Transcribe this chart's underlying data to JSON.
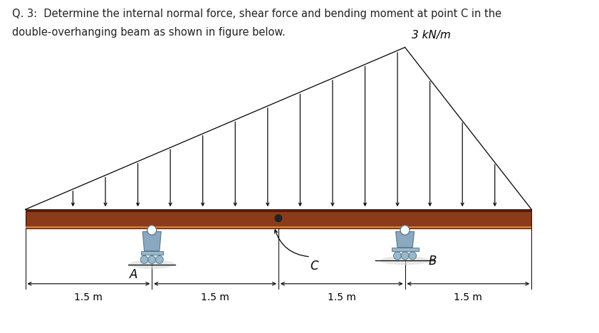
{
  "title_line1": "Q. 3:  Determine the internal normal force, shear force and bending moment at point C in the",
  "title_line2": "double-overhanging beam as shown in figure below.",
  "title_fontsize": 10.5,
  "title_color": "#222222",
  "load_label": "3 kN/m",
  "dim_labels": [
    "1.5 m",
    "1.5 m",
    "1.5 m",
    "1.5 m"
  ],
  "beam_color": "#8B3A1A",
  "beam_top_color": "#5C1A00",
  "beam_edge_color": "#3a1000",
  "beam_x_start": 0.0,
  "beam_x_end": 6.0,
  "beam_y_center": 0.0,
  "beam_height": 0.22,
  "support_A_x": 1.5,
  "support_B_x": 4.5,
  "point_C_x": 3.0,
  "load_peak_x": 4.5,
  "load_peak_height": 1.85,
  "n_load_arrows": 16,
  "support_pin_color": "#8aa8c0",
  "support_pin_dark": "#5a7a90",
  "support_base_color": "#9ab8cc",
  "bg_color": "#ffffff",
  "xlim": [
    -0.3,
    6.8
  ],
  "ylim": [
    -1.3,
    2.5
  ]
}
